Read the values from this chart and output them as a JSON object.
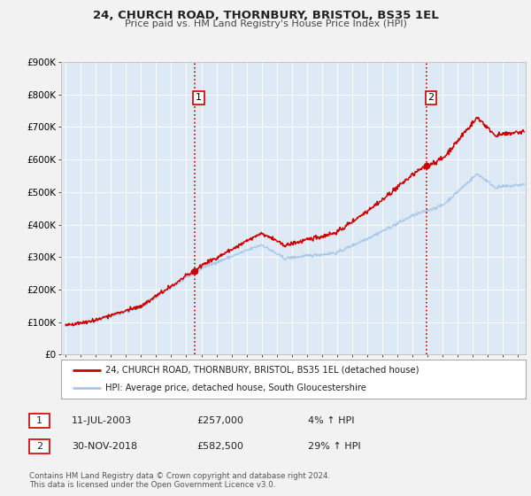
{
  "title1": "24, CHURCH ROAD, THORNBURY, BRISTOL, BS35 1EL",
  "title2": "Price paid vs. HM Land Registry's House Price Index (HPI)",
  "background_color": "#f2f2f2",
  "plot_bg_color": "#ddeaf5",
  "grid_color": "#ffffff",
  "ylim": [
    0,
    900000
  ],
  "yticks": [
    0,
    100000,
    200000,
    300000,
    400000,
    500000,
    600000,
    700000,
    800000,
    900000
  ],
  "ytick_labels": [
    "£0",
    "£100K",
    "£200K",
    "£300K",
    "£400K",
    "£500K",
    "£600K",
    "£700K",
    "£800K",
    "£900K"
  ],
  "xlim_start": 1994.7,
  "xlim_end": 2025.5,
  "xticks": [
    1995,
    1996,
    1997,
    1998,
    1999,
    2000,
    2001,
    2002,
    2003,
    2004,
    2005,
    2006,
    2007,
    2008,
    2009,
    2010,
    2011,
    2012,
    2013,
    2014,
    2015,
    2016,
    2017,
    2018,
    2019,
    2020,
    2021,
    2022,
    2023,
    2024,
    2025
  ],
  "hpi_line_color": "#aac8e8",
  "price_line_color": "#cc0000",
  "marker_color": "#cc0000",
  "vline_color": "#cc0000",
  "sale1_x": 2003.53,
  "sale1_y": 257000,
  "sale1_label": "1",
  "sale2_x": 2018.92,
  "sale2_y": 582500,
  "sale2_label": "2",
  "legend_line1": "24, CHURCH ROAD, THORNBURY, BRISTOL, BS35 1EL (detached house)",
  "legend_line2": "HPI: Average price, detached house, South Gloucestershire",
  "table_row1": [
    "1",
    "11-JUL-2003",
    "£257,000",
    "4% ↑ HPI"
  ],
  "table_row2": [
    "2",
    "30-NOV-2018",
    "£582,500",
    "29% ↑ HPI"
  ],
  "footnote1": "Contains HM Land Registry data © Crown copyright and database right 2024.",
  "footnote2": "This data is licensed under the Open Government Licence v3.0."
}
